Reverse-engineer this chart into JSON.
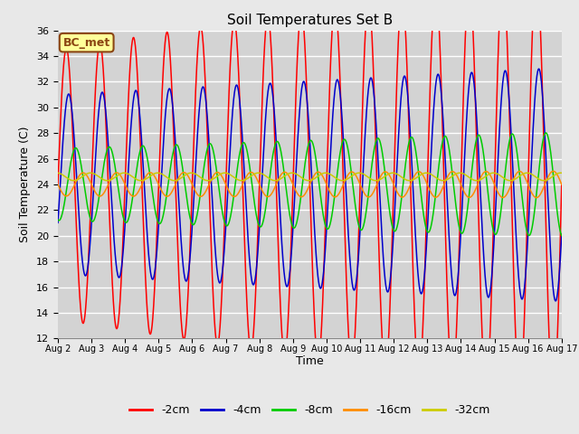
{
  "title": "Soil Temperatures Set B",
  "xlabel": "Time",
  "ylabel": "Soil Temperature (C)",
  "ylim": [
    12,
    36
  ],
  "yticks": [
    12,
    14,
    16,
    18,
    20,
    22,
    24,
    26,
    28,
    30,
    32,
    34,
    36
  ],
  "background_color": "#e8e8e8",
  "plot_bg_color": "#d3d3d3",
  "grid_color": "#ffffff",
  "annotation_text": "BC_met",
  "annotation_bg": "#ffff99",
  "annotation_border": "#8b4513",
  "series_order": [
    "-2cm",
    "-4cm",
    "-8cm",
    "-16cm",
    "-32cm"
  ],
  "colors": {
    "-2cm": "#ff0000",
    "-4cm": "#0000cc",
    "-8cm": "#00cc00",
    "-16cm": "#ff8c00",
    "-32cm": "#cccc00"
  },
  "amplitudes": {
    "-2cm": 10.5,
    "-4cm": 7.0,
    "-8cm": 2.8,
    "-16cm": 0.9,
    "-32cm": 0.3
  },
  "means": {
    "-2cm": 24.0,
    "-4cm": 24.0,
    "-8cm": 24.0,
    "-16cm": 24.0,
    "-32cm": 24.6
  },
  "phase_fracs": {
    "-2cm": 0.0,
    "-4cm": 0.07,
    "-8cm": 0.28,
    "-16cm": 0.5,
    "-32cm": 0.72
  },
  "amp_growth": {
    "-2cm": 0.04,
    "-4cm": 0.02,
    "-8cm": 0.03,
    "-16cm": 0.01,
    "-32cm": 0.0
  },
  "x_start": 2,
  "x_end": 17,
  "x_ticks": [
    2,
    3,
    4,
    5,
    6,
    7,
    8,
    9,
    10,
    11,
    12,
    13,
    14,
    15,
    16,
    17
  ],
  "x_tick_labels": [
    "Aug 2",
    "Aug 3",
    "Aug 4",
    "Aug 5",
    "Aug 6",
    "Aug 7",
    "Aug 8",
    "Aug 9",
    "Aug 10",
    "Aug 11",
    "Aug 12",
    "Aug 13",
    "Aug 14",
    "Aug 15",
    "Aug 16",
    "Aug 17"
  ]
}
